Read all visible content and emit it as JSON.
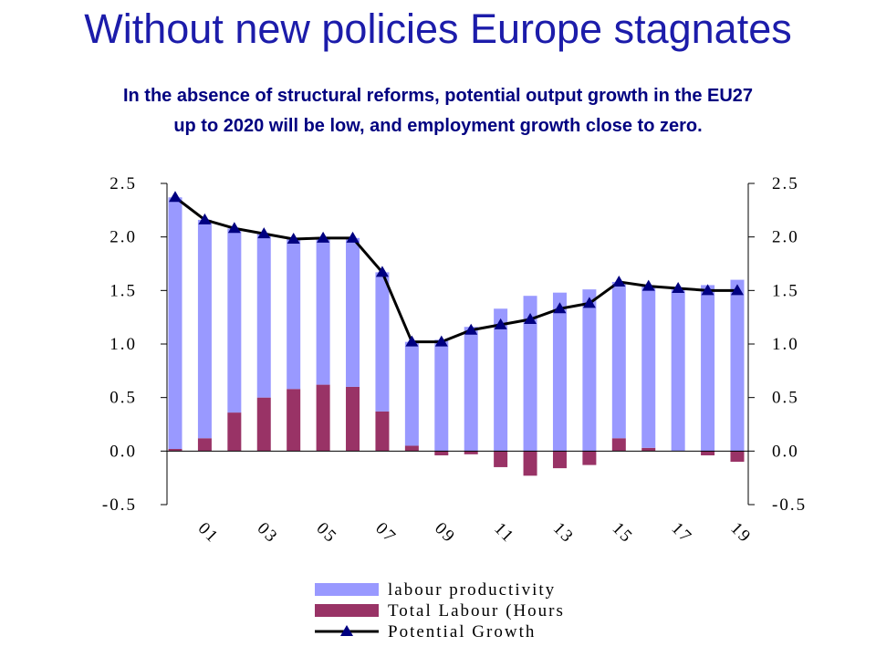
{
  "chart_data": {
    "type": "bar",
    "title": "Without new policies Europe stagnates",
    "subtitle": [
      "In the absence of structural reforms, potential output growth in the EU27",
      "up to 2020 will be low, and employment growth close to zero."
    ],
    "categories": [
      null,
      "01",
      null,
      "03",
      null,
      "05",
      null,
      "07",
      null,
      "09",
      null,
      "11",
      null,
      "13",
      null,
      "15",
      null,
      "17",
      null,
      "19"
    ],
    "series": [
      {
        "name": "labour productivity",
        "color": "#9999ff",
        "values": [
          2.35,
          2.04,
          1.72,
          1.53,
          1.4,
          1.37,
          1.39,
          1.3,
          0.97,
          1.04,
          1.16,
          1.33,
          1.45,
          1.48,
          1.51,
          1.46,
          1.51,
          1.52,
          1.55,
          1.6
        ]
      },
      {
        "name": "Total Labour (Hours",
        "color": "#993366",
        "values": [
          0.02,
          0.12,
          0.36,
          0.5,
          0.58,
          0.62,
          0.6,
          0.37,
          0.05,
          -0.04,
          -0.03,
          -0.15,
          -0.23,
          -0.16,
          -0.13,
          0.12,
          0.03,
          0.0,
          -0.04,
          -0.1
        ]
      },
      {
        "name": "Potential Growth",
        "type": "line",
        "color": "#000000",
        "marker_color": "#000080",
        "values": [
          2.37,
          2.16,
          2.08,
          2.03,
          1.98,
          1.99,
          1.99,
          1.67,
          1.02,
          1.02,
          1.13,
          1.18,
          1.23,
          1.33,
          1.38,
          1.58,
          1.54,
          1.52,
          1.5,
          1.5
        ]
      }
    ],
    "ylim": [
      -0.5,
      2.5
    ],
    "yticks": [
      -0.5,
      {
        "value": 0,
        "label": "0.0"
      },
      0.5,
      {
        "value": 1,
        "label": "1.0"
      },
      1.5,
      {
        "value": 2,
        "label": "2.0"
      },
      2.5
    ],
    "y2lim": [
      -0.5,
      2.5
    ],
    "y2ticks": [
      -0.5,
      {
        "value": 0,
        "label": "0.0"
      },
      0.5,
      {
        "value": 1,
        "label": "1.0"
      },
      1.5,
      {
        "value": 2,
        "label": "2.0"
      },
      2.5
    ],
    "stacked": true,
    "grid": false,
    "legend": "bottom"
  }
}
